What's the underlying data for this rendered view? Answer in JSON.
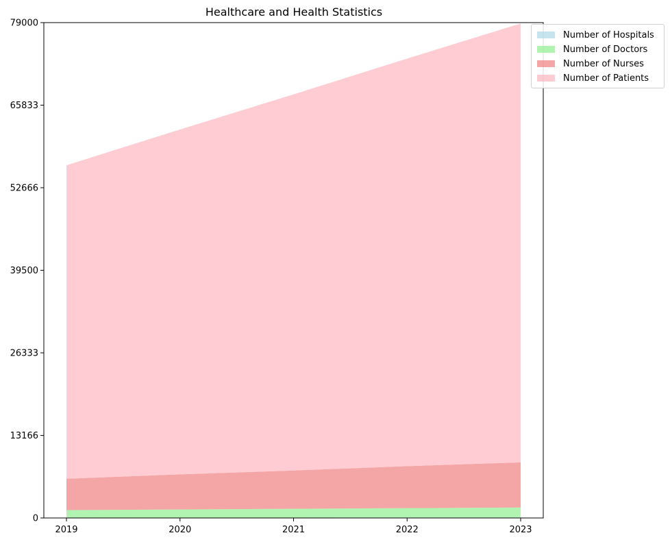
{
  "chart_data": {
    "type": "area",
    "stacked": true,
    "title": "Healthcare and Health Statistics",
    "xlabel": "",
    "ylabel": "",
    "categories": [
      "2019",
      "2020",
      "2021",
      "2022",
      "2023"
    ],
    "ylim": [
      0,
      79000
    ],
    "yticks": [
      "0",
      "13166",
      "26333",
      "39500",
      "52666",
      "65833",
      "79000"
    ],
    "series": [
      {
        "name": "Number of Hospitals",
        "color": "#add8e6",
        "values": [
          50,
          55,
          60,
          65,
          70
        ]
      },
      {
        "name": "Number of Doctors",
        "color": "#90ee90",
        "values": [
          1200,
          1300,
          1400,
          1500,
          1600
        ]
      },
      {
        "name": "Number of Nurses",
        "color": "#f08080",
        "values": [
          5000,
          5600,
          6100,
          6700,
          7200
        ]
      },
      {
        "name": "Number of Patients",
        "color": "#ffb6c1",
        "values": [
          50000,
          55000,
          60000,
          65000,
          70000
        ]
      }
    ],
    "legend_position": "upper-right-outside",
    "grid": false
  }
}
